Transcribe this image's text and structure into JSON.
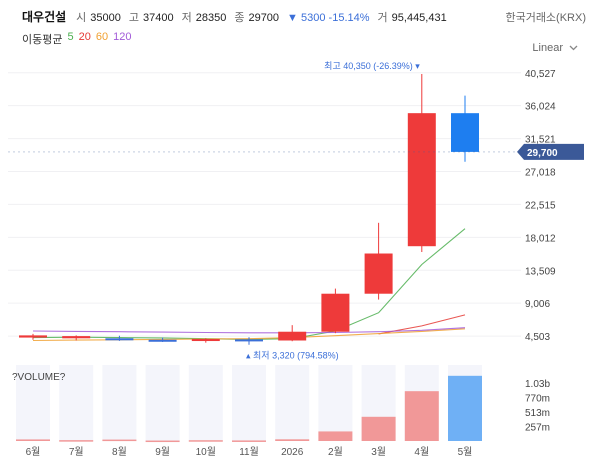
{
  "header": {
    "stock_name": "대우건설",
    "open_label": "시",
    "open": "35000",
    "high_label": "고",
    "high": "37400",
    "low_label": "저",
    "low": "28350",
    "close_label": "종",
    "close": "29700",
    "change_arrow": "▼",
    "change": "5300",
    "change_pct": "-15.14%",
    "volume_label": "거",
    "volume": "95,445,431",
    "exchange": "한국거래소(KRX)"
  },
  "ma_legend": {
    "label": "이동평균",
    "items": [
      {
        "period": "5",
        "color": "#4caf50"
      },
      {
        "period": "20",
        "color": "#e53935"
      },
      {
        "period": "60",
        "color": "#f0a030"
      },
      {
        "period": "120",
        "color": "#a25bd8"
      }
    ]
  },
  "scale_mode": "Linear",
  "chart_data": {
    "type": "candlestick",
    "x_labels": [
      "6월",
      "7월",
      "8월",
      "9월",
      "10월",
      "11월",
      "2026",
      "2월",
      "3월",
      "4월",
      "5월"
    ],
    "y_axis": {
      "ticks": [
        4503,
        9006,
        13509,
        18012,
        22515,
        27018,
        31521,
        36024,
        40527
      ],
      "tick_labels": [
        "4,503",
        "9,006",
        "13,509",
        "18,012",
        "22,515",
        "27,018",
        "31,521",
        "36,024",
        "40,527"
      ],
      "range": [
        2600,
        42000
      ]
    },
    "candles": [
      {
        "x": "6월",
        "open": 4300,
        "high": 4800,
        "low": 4000,
        "close": 4600
      },
      {
        "x": "7월",
        "open": 4200,
        "high": 4600,
        "low": 3900,
        "close": 4500
      },
      {
        "x": "8월",
        "open": 4200,
        "high": 4550,
        "low": 3850,
        "close": 4000
      },
      {
        "x": "9월",
        "open": 4000,
        "high": 4300,
        "low": 3700,
        "close": 3900
      },
      {
        "x": "10월",
        "open": 3850,
        "high": 4200,
        "low": 3600,
        "close": 4100
      },
      {
        "x": "11월",
        "open": 4050,
        "high": 4350,
        "low": 3320,
        "close": 3800
      },
      {
        "x": "2026",
        "open": 3900,
        "high": 6000,
        "low": 3800,
        "close": 5100
      },
      {
        "x": "2월",
        "open": 5100,
        "high": 11000,
        "low": 4900,
        "close": 10300
      },
      {
        "x": "3월",
        "open": 10300,
        "high": 20000,
        "low": 9500,
        "close": 15800
      },
      {
        "x": "4월",
        "open": 16800,
        "high": 40350,
        "low": 16000,
        "close": 35000
      },
      {
        "x": "5월",
        "open": 35000,
        "high": 37400,
        "low": 28350,
        "close": 29700
      }
    ],
    "moving_averages": [
      {
        "name": "5",
        "color": "#4caf50",
        "values": [
          4300,
          4350,
          4300,
          4250,
          4150,
          4050,
          4150,
          5200,
          7700,
          14300,
          19200
        ]
      },
      {
        "name": "20",
        "color": "#e53935",
        "values": [
          null,
          null,
          null,
          null,
          null,
          null,
          null,
          null,
          4800,
          5900,
          7400
        ]
      },
      {
        "name": "60",
        "color": "#f0a030",
        "values": [
          3900,
          3950,
          4000,
          4050,
          4100,
          4150,
          4300,
          4550,
          4850,
          5150,
          5500
        ]
      },
      {
        "name": "120",
        "color": "#a25bd8",
        "values": [
          5200,
          5150,
          5100,
          5050,
          5000,
          4950,
          4950,
          5000,
          5100,
          5300,
          5650
        ]
      }
    ],
    "current_price": {
      "value": 29700,
      "label": "29,700"
    },
    "period_high": {
      "value": 40350,
      "label": "최고 40,350 (-26.39%)"
    },
    "period_low": {
      "value": 3320,
      "label": "최저 3,320 (794.58%)"
    },
    "volume": {
      "title": "?VOLUME?",
      "values": [
        28000000,
        15000000,
        25000000,
        8000000,
        14000000,
        10000000,
        30000000,
        170000000,
        430000000,
        885000000,
        1158000000
      ],
      "ticks": [
        257000000,
        513000000,
        770000000,
        1030000000
      ],
      "tick_labels": [
        "257m",
        "513m",
        "770m",
        "1.03b"
      ],
      "max": 1350000000
    }
  }
}
